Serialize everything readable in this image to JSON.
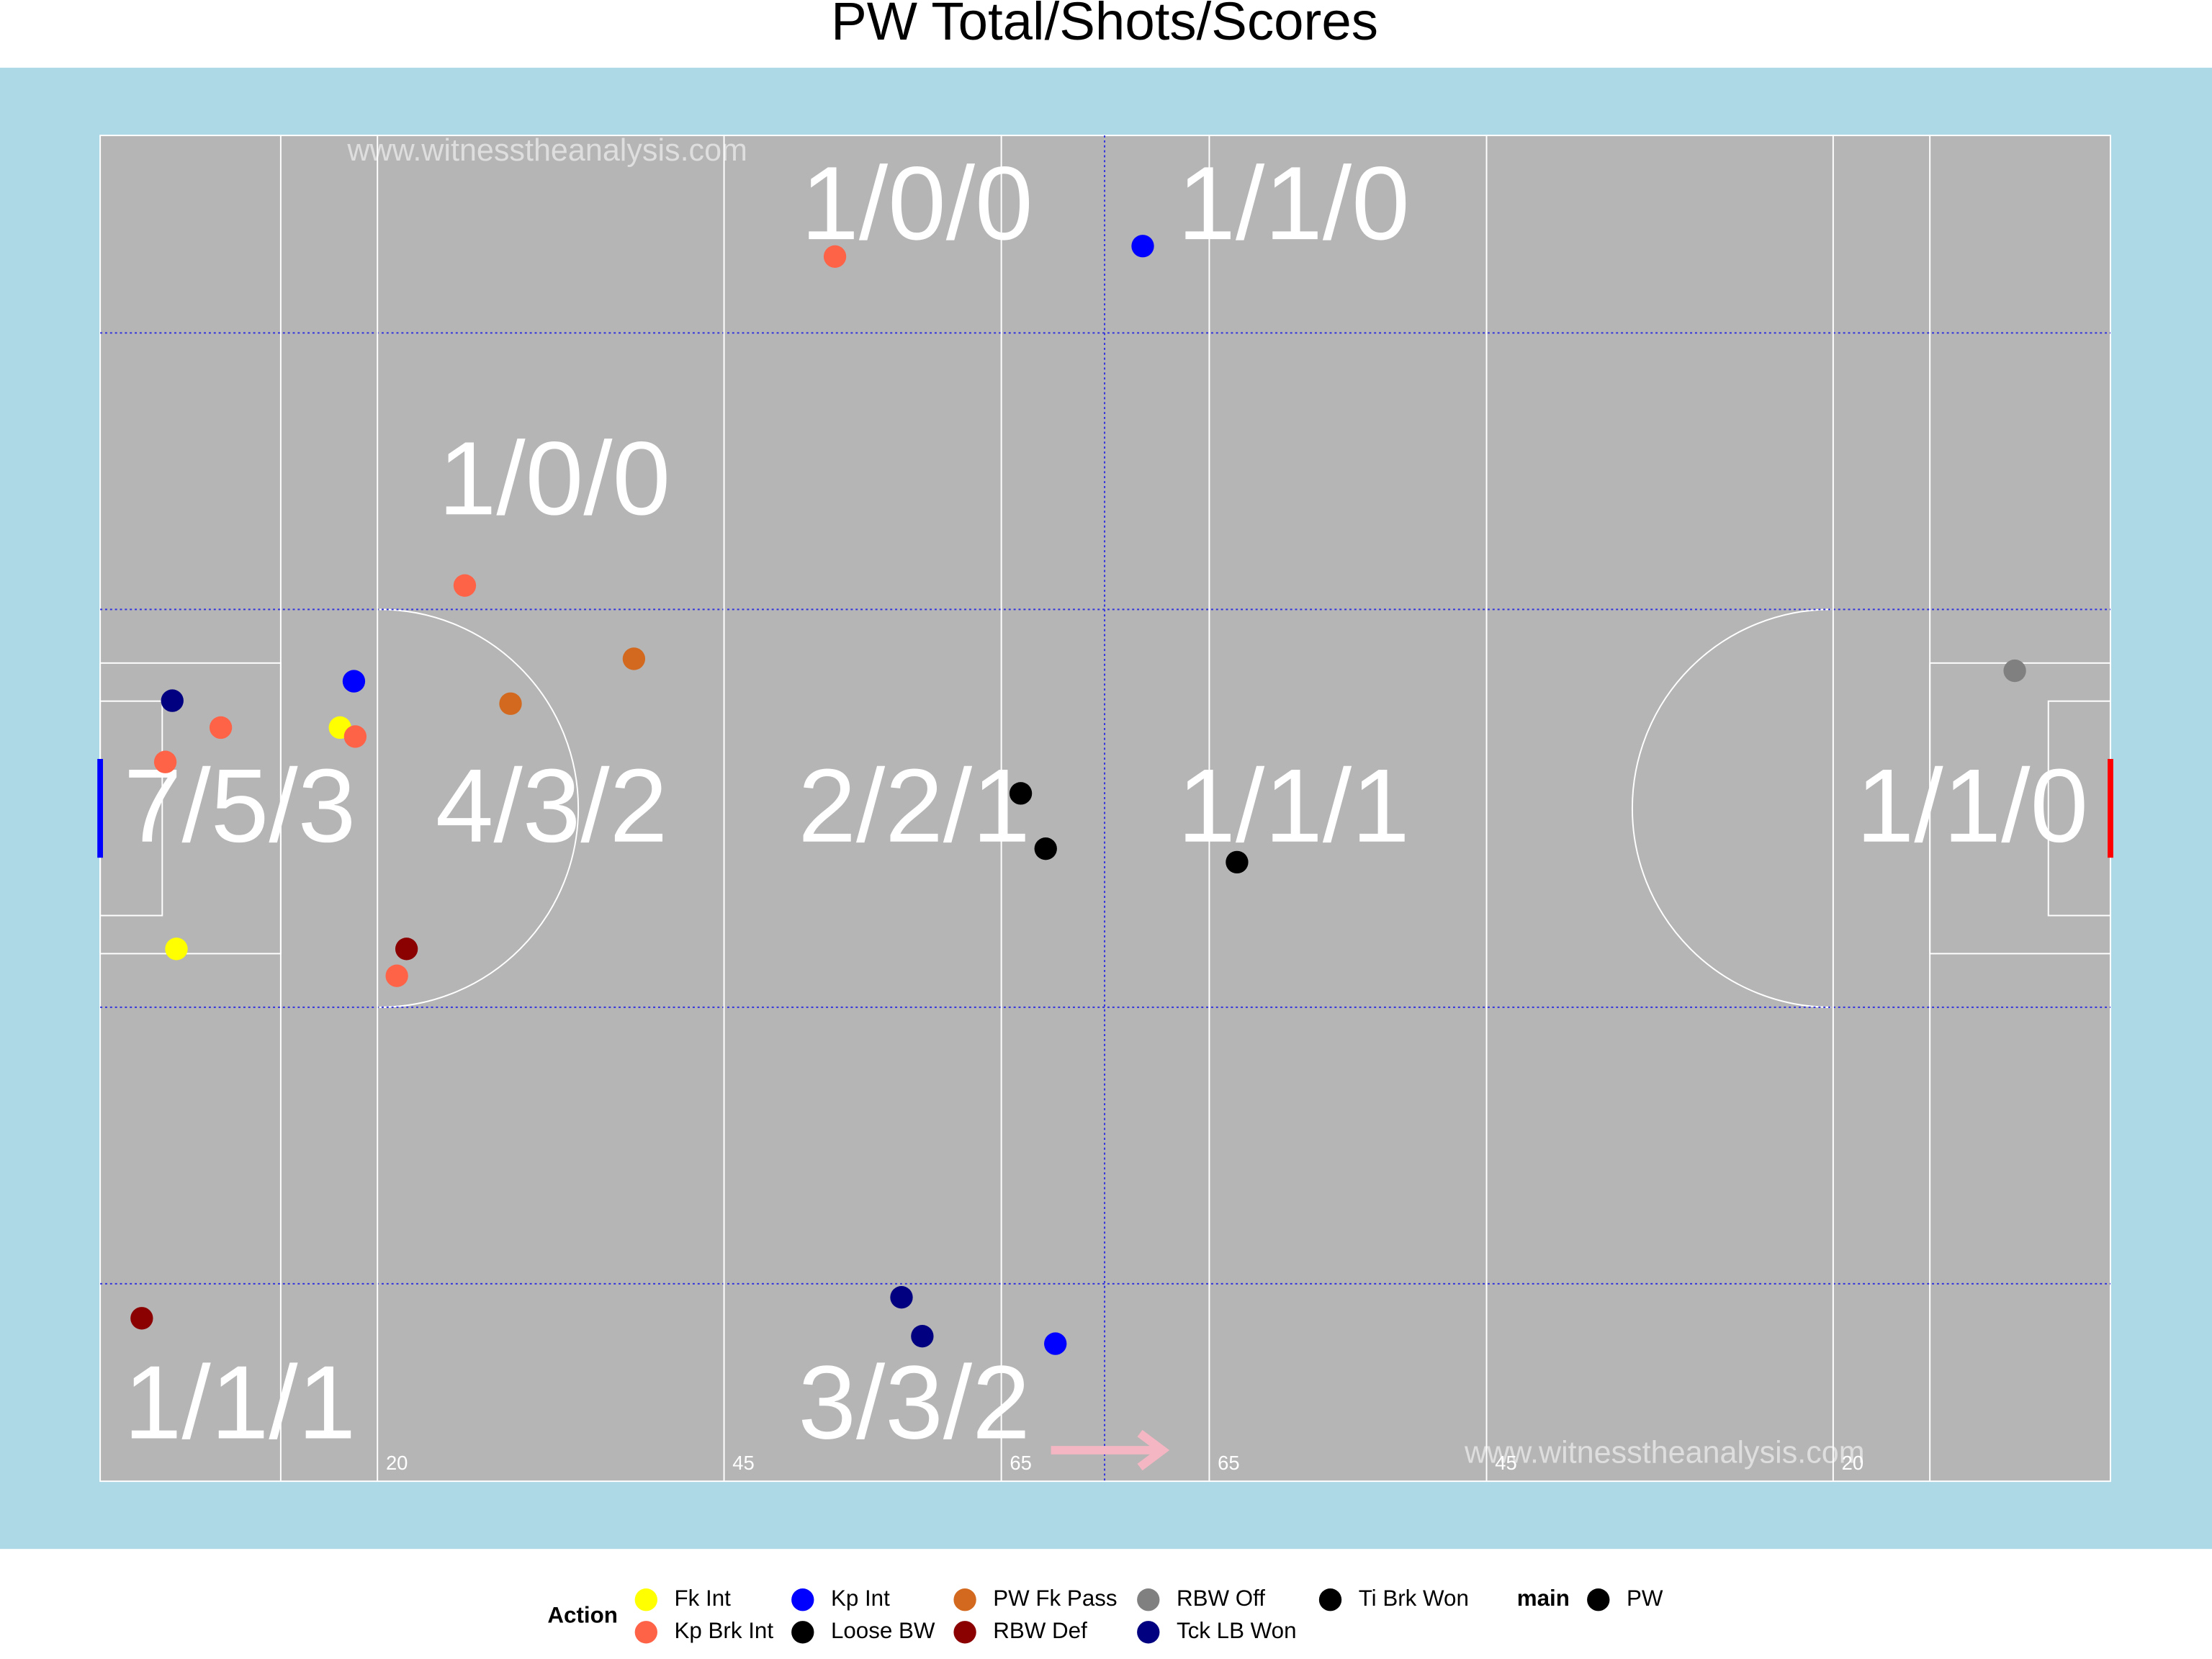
{
  "chart_data": {
    "type": "scatter",
    "title": "PW Total/Shots/Scores",
    "watermark": "www.witnesstheanalysis.com",
    "xlim": [
      0,
      145
    ],
    "ylim": [
      0,
      90
    ],
    "xticks": [
      20,
      45,
      65,
      {
        "value": 80,
        "label": "65"
      },
      {
        "value": 100,
        "label": "45"
      },
      {
        "value": 125,
        "label": "20"
      }
    ],
    "legend_title": "Action",
    "series": [
      {
        "name": "Fk Int",
        "color": "#FFFF00",
        "x": [
          17.3,
          5.5
        ],
        "values": [
          50.4,
          35.6
        ]
      },
      {
        "name": "Kp Brk Int",
        "color": "#FF6347",
        "x": [
          53.0,
          26.3,
          8.7,
          4.7,
          18.4,
          21.4
        ],
        "values": [
          81.9,
          59.9,
          50.4,
          48.1,
          49.8,
          33.8
        ]
      },
      {
        "name": "Kp Int",
        "color": "#0000FF",
        "x": [
          75.2,
          18.3,
          68.9
        ],
        "values": [
          82.6,
          53.5,
          9.2
        ]
      },
      {
        "name": "Loose BW",
        "color": "#000000",
        "x": [
          66.4,
          68.2
        ],
        "values": [
          46.0,
          42.3
        ]
      },
      {
        "name": "PW Fk Pass",
        "color": "#D2691E",
        "x": [
          38.5,
          29.6
        ],
        "values": [
          55.0,
          52.0
        ]
      },
      {
        "name": "RBW Def",
        "color": "#8B0000",
        "x": [
          22.1,
          3.0
        ],
        "values": [
          35.6,
          10.9
        ]
      },
      {
        "name": "RBW Off",
        "color": "#808080",
        "x": [
          138.1
        ],
        "values": [
          54.2
        ]
      },
      {
        "name": "Tck LB Won",
        "color": "#000080",
        "x": [
          5.2,
          57.8,
          59.3
        ],
        "values": [
          52.2,
          12.3,
          9.7
        ]
      },
      {
        "name": "Ti Brk Won",
        "color": "#000000",
        "x": [
          82.0
        ],
        "values": [
          41.4
        ]
      }
    ],
    "legend2": {
      "title": "main",
      "entries": [
        {
          "name": "PW",
          "color": "#000000"
        }
      ]
    },
    "annotations": [
      "1/0/0",
      "1/1/0",
      "1/0/0",
      "7/5/3",
      "4/3/2",
      "2/2/1",
      "1/1/1",
      "1/1/0",
      "1/1/1",
      "3/3/2"
    ]
  }
}
